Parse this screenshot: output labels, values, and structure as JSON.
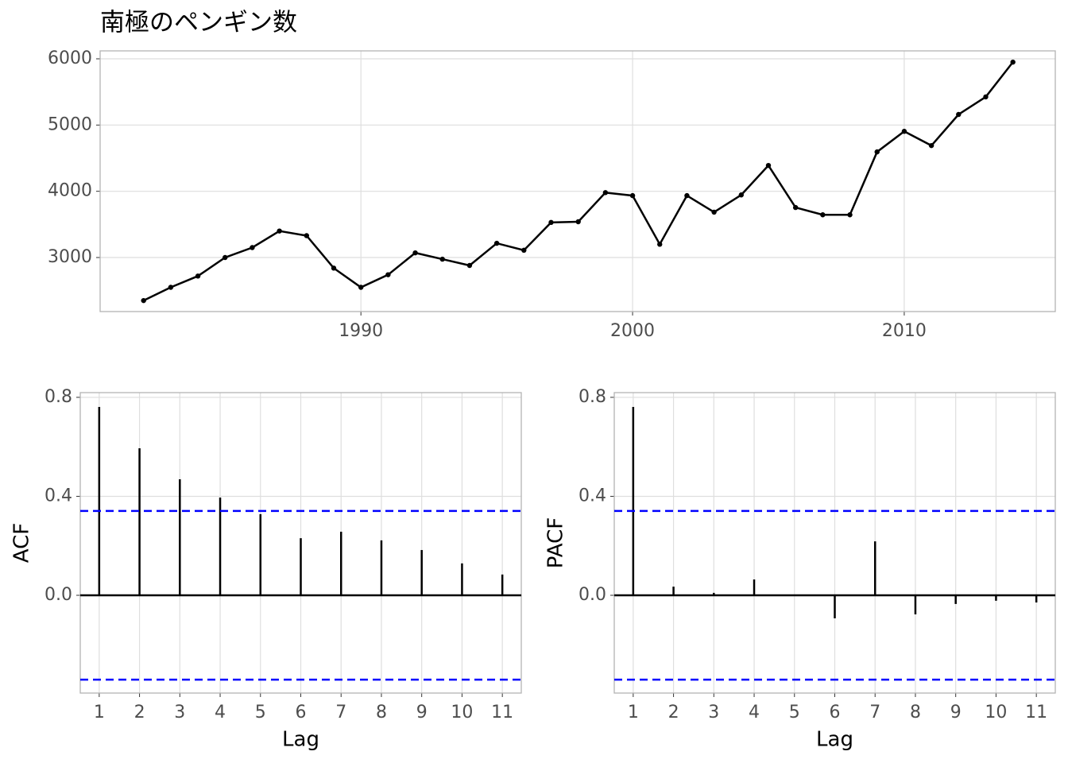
{
  "chart_data": [
    {
      "type": "line",
      "title": "南極のペンギン数",
      "color": "#000000",
      "x": [
        1982,
        1983,
        1984,
        1985,
        1986,
        1987,
        1988,
        1989,
        1990,
        1991,
        1992,
        1993,
        1994,
        1995,
        1996,
        1997,
        1998,
        1999,
        2000,
        2001,
        2002,
        2003,
        2004,
        2005,
        2006,
        2007,
        2008,
        2009,
        2010,
        2011,
        2012,
        2013,
        2014
      ],
      "values": [
        2350,
        2550,
        2720,
        3000,
        3150,
        3400,
        3330,
        2840,
        2550,
        2740,
        3070,
        2975,
        2880,
        3215,
        3110,
        3530,
        3540,
        3980,
        3935,
        3200,
        3935,
        3685,
        3945,
        4390,
        3755,
        3645,
        3645,
        4595,
        4905,
        4690,
        5160,
        5425,
        5950
      ],
      "xlim": [
        1980.4,
        2015.56
      ],
      "xticks": [
        1990,
        2000,
        2010
      ],
      "ylim": [
        2184,
        6120
      ],
      "yticks": [
        3000,
        4000,
        5000,
        6000
      ],
      "grid": true
    },
    {
      "type": "stem",
      "xlabel": "Lag",
      "ylabel": "ACF",
      "color": "#000000",
      "ci_color": "#0000ff",
      "x": [
        1,
        2,
        3,
        4,
        5,
        6,
        7,
        8,
        9,
        10,
        11
      ],
      "values": [
        0.761,
        0.594,
        0.469,
        0.395,
        0.328,
        0.231,
        0.257,
        0.222,
        0.183,
        0.129,
        0.084
      ],
      "ci_lines": [
        0.341,
        -0.341
      ],
      "xlim": [
        0.53,
        11.47
      ],
      "xticks": [
        1,
        2,
        3,
        4,
        5,
        6,
        7,
        8,
        9,
        10,
        11
      ],
      "ylim": [
        -0.395,
        0.819
      ],
      "yticks": [
        {
          "value": 0,
          "label": "0.0"
        },
        0.4,
        0.8
      ],
      "grid": true
    },
    {
      "type": "stem",
      "xlabel": "Lag",
      "ylabel": "PACF",
      "color": "#000000",
      "ci_color": "#0000ff",
      "x": [
        1,
        2,
        3,
        4,
        5,
        6,
        7,
        8,
        9,
        10,
        11
      ],
      "values": [
        0.761,
        0.035,
        0.01,
        0.064,
        0.002,
        -0.093,
        0.218,
        -0.077,
        -0.035,
        -0.022,
        -0.029
      ],
      "ci_lines": [
        0.341,
        -0.341
      ],
      "xlim": [
        0.53,
        11.47
      ],
      "xticks": [
        1,
        2,
        3,
        4,
        5,
        6,
        7,
        8,
        9,
        10,
        11
      ],
      "ylim": [
        -0.395,
        0.819
      ],
      "yticks": [
        {
          "value": 0,
          "label": "0.0"
        },
        0.4,
        0.8
      ],
      "grid": true
    }
  ]
}
